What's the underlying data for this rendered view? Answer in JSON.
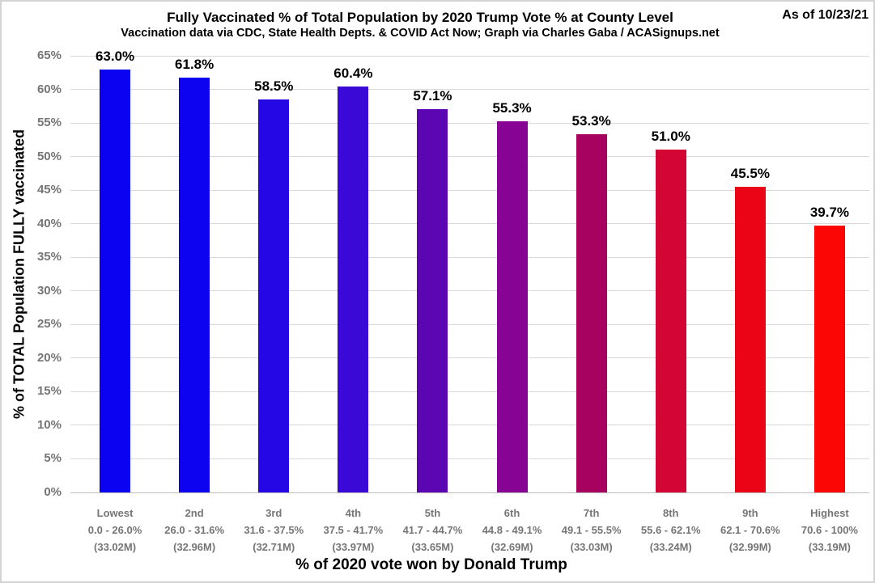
{
  "chart_data": {
    "type": "bar",
    "title": "Fully Vaccinated % of Total Population by 2020 Trump Vote % at County Level",
    "subtitle": "Vaccination data via CDC, State Health Depts. & COVID Act Now; Graph via Charles Gaba / ACASignups.net",
    "as_of": "As of 10/23/21",
    "xlabel": "% of 2020 vote won by Donald Trump",
    "ylabel": "% of TOTAL Population FULLY vaccinated",
    "ylim": [
      0,
      65
    ],
    "grid": true,
    "legend": "none",
    "ytick_values": [
      0,
      5,
      10,
      15,
      20,
      25,
      30,
      35,
      40,
      45,
      50,
      55,
      60,
      65
    ],
    "ytick_labels": [
      "0%",
      "5%",
      "10%",
      "15%",
      "20%",
      "25%",
      "30%",
      "35%",
      "40%",
      "45%",
      "50%",
      "55%",
      "60%",
      "65%"
    ],
    "categories": [
      {
        "rank": "Lowest",
        "range": "0.0 - 26.0%",
        "population": "(33.02M)"
      },
      {
        "rank": "2nd",
        "range": "26.0 - 31.6%",
        "population": "(32.96M)"
      },
      {
        "rank": "3rd",
        "range": "31.6 - 37.5%",
        "population": "(32.71M)"
      },
      {
        "rank": "4th",
        "range": "37.5 - 41.7%",
        "population": "(33.97M)"
      },
      {
        "rank": "5th",
        "range": "41.7 - 44.7%",
        "population": "(33.65M)"
      },
      {
        "rank": "6th",
        "range": "44.8 - 49.1%",
        "population": "(32.69M)"
      },
      {
        "rank": "7th",
        "range": "49.1 - 55.5%",
        "population": "(33.03M)"
      },
      {
        "rank": "8th",
        "range": "55.6 - 62.1%",
        "population": "(33.24M)"
      },
      {
        "rank": "9th",
        "range": "62.1 - 70.6%",
        "population": "(32.99M)"
      },
      {
        "rank": "Highest",
        "range": "70.6 - 100%",
        "population": "(33.19M)"
      }
    ],
    "values": [
      63.0,
      61.8,
      58.5,
      60.4,
      57.1,
      55.3,
      53.3,
      51.0,
      45.5,
      39.7
    ],
    "value_labels": [
      "63.0%",
      "61.8%",
      "58.5%",
      "60.4%",
      "57.1%",
      "55.3%",
      "53.3%",
      "51.0%",
      "45.5%",
      "39.7%"
    ],
    "bar_colors": [
      "#0C02F2",
      "#0D03F0",
      "#2506E4",
      "#3B09D6",
      "#5C06B3",
      "#870393",
      "#A7025F",
      "#D20534",
      "#EA0416",
      "#FB0505"
    ],
    "colors": {
      "background": "#ffffff",
      "grid": "#d9d9d9",
      "axis_line": "#bfbfbf",
      "tick_label": "#757575",
      "text": "#000000",
      "frame_border": "#d3d3d3"
    }
  }
}
